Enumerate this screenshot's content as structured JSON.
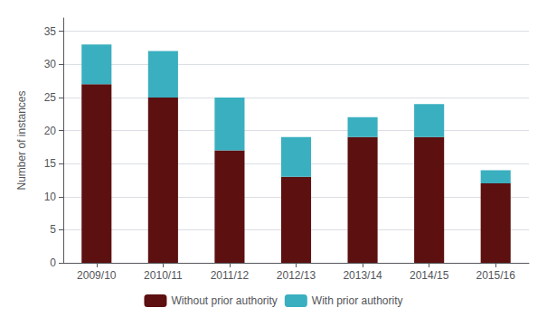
{
  "chart_data": {
    "type": "bar",
    "stacked": true,
    "categories": [
      "2009/10",
      "2010/11",
      "2011/12",
      "2012/13",
      "2013/14",
      "2014/15",
      "2015/16"
    ],
    "series": [
      {
        "name": "Without prior authority",
        "color": "#5C1010",
        "values": [
          27,
          25,
          17,
          13,
          19,
          19,
          12
        ]
      },
      {
        "name": "With prior authority",
        "color": "#3AAFBF",
        "values": [
          6,
          7,
          8,
          6,
          3,
          5,
          2
        ]
      }
    ],
    "ylabel": "Number of instances",
    "ylim": [
      0,
      37
    ],
    "yticks": [
      0,
      5,
      10,
      15,
      20,
      25,
      30,
      35
    ],
    "grid": true,
    "legend": "bottom"
  }
}
